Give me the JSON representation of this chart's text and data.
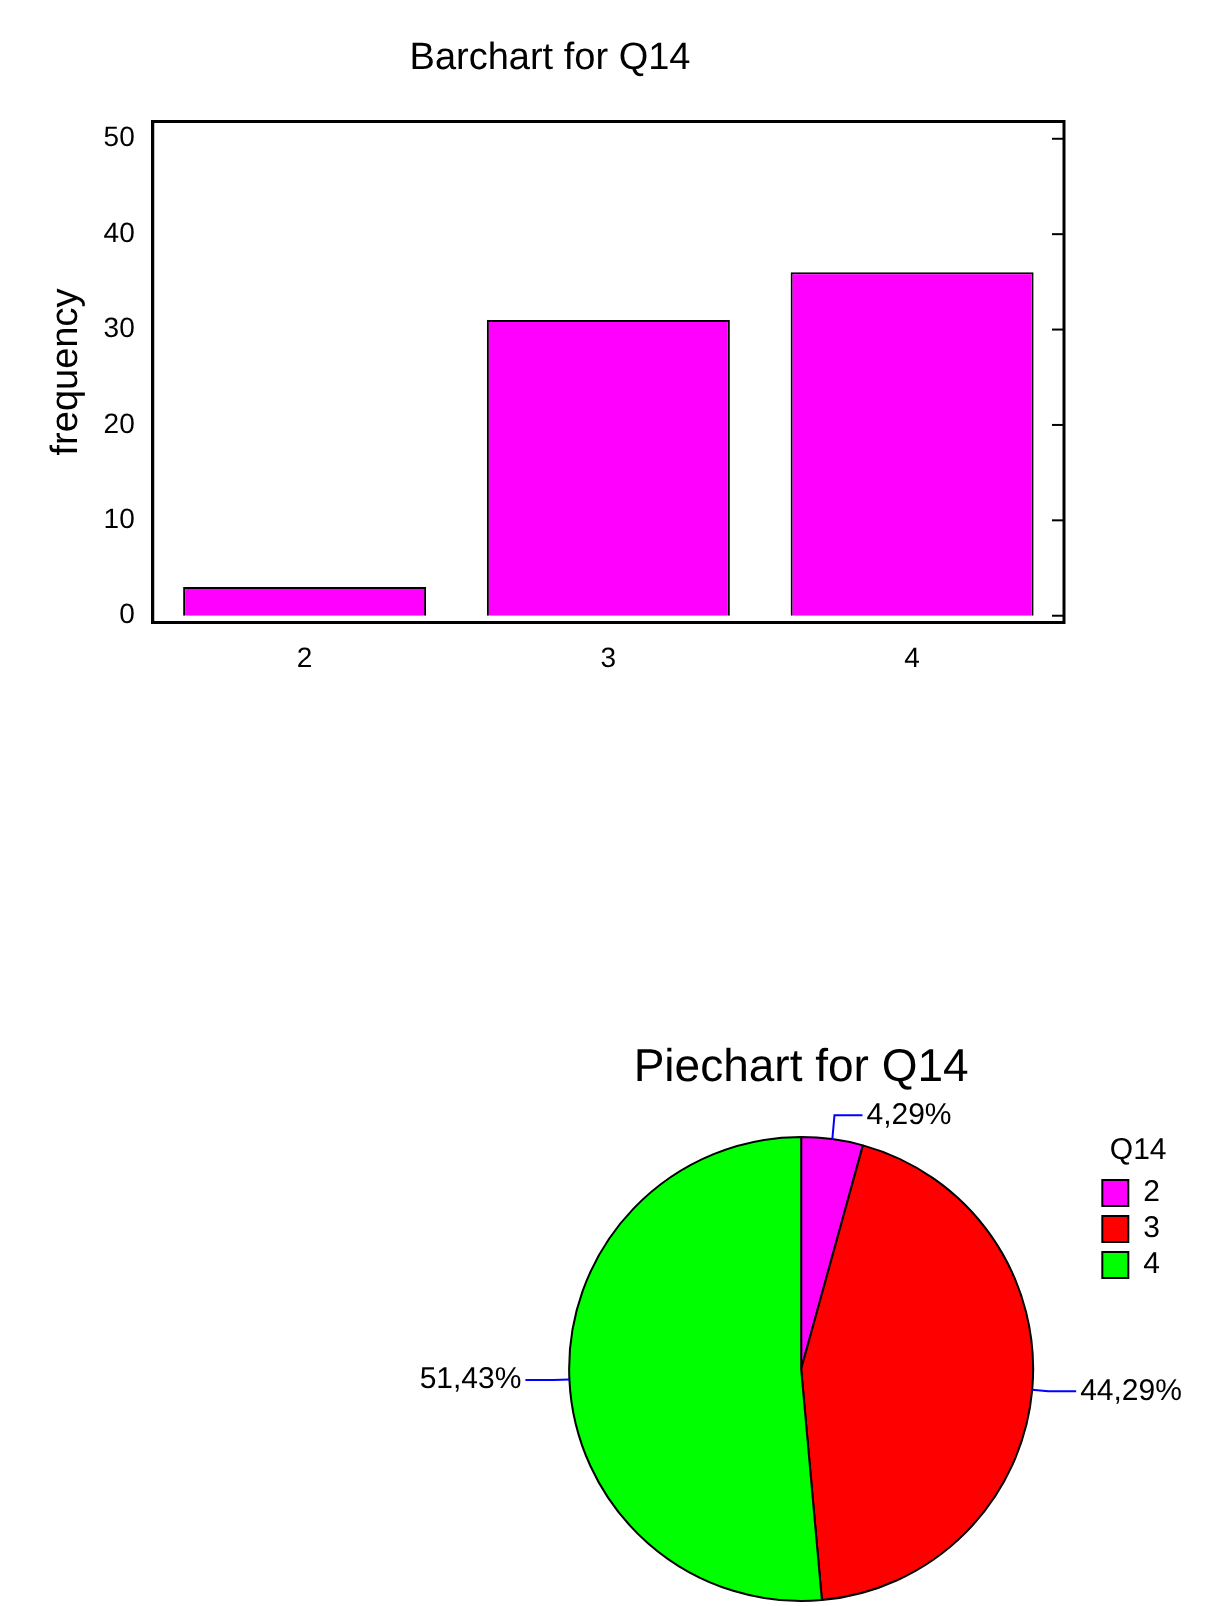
{
  "chart_data": [
    {
      "type": "bar",
      "title": "Barchart for Q14",
      "ylabel": "frequency",
      "categories": [
        "2",
        "3",
        "4"
      ],
      "values": [
        3,
        31,
        36
      ],
      "color": "#ff00ff",
      "ylim": [
        -0.7,
        51.8
      ],
      "yticks": [
        0,
        10,
        20,
        30,
        40,
        50
      ],
      "grid": false,
      "legend": false
    },
    {
      "type": "pie",
      "title": "Piechart for Q14",
      "legend_title": "Q14",
      "categories": [
        "2",
        "3",
        "4"
      ],
      "values": [
        4.29,
        44.29,
        51.43
      ],
      "colors": [
        "#ff00ff",
        "#ff0000",
        "#00ff00"
      ],
      "value_labels": [
        "4,29%",
        "44,29%",
        "51,43%"
      ],
      "legend": "top right"
    }
  ]
}
